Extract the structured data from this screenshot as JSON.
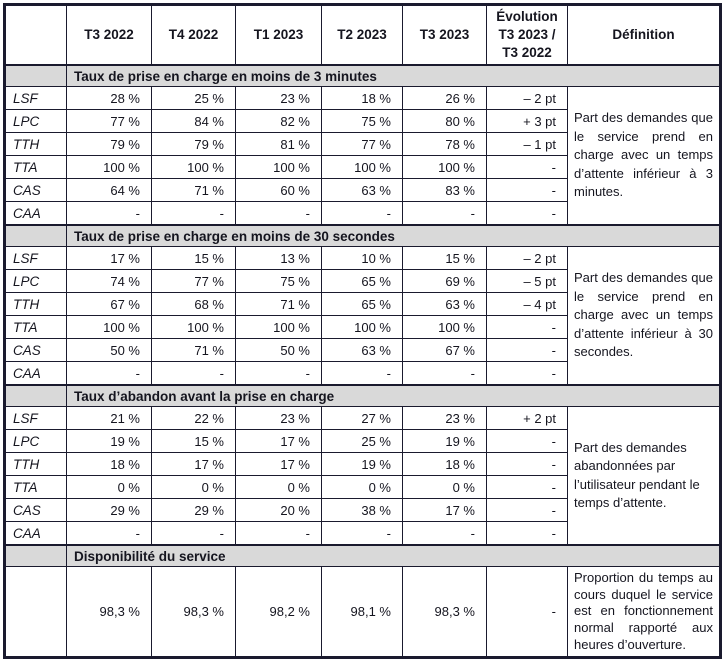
{
  "chart_data": {
    "type": "table",
    "columns": [
      "",
      "T3 2022",
      "T4 2022",
      "T1 2023",
      "T2 2023",
      "T3 2023",
      "Évolution T3 2023 / T3 2022",
      "Définition"
    ],
    "evolution_header_lines": [
      "Évolution",
      "T3 2023 /",
      "T3 2022"
    ],
    "sections": [
      {
        "title": "Taux de prise en charge en moins de 3 minutes",
        "rows": [
          {
            "label": "LSF",
            "values": [
              "28 %",
              "25 %",
              "23 %",
              "18 %",
              "26 %"
            ],
            "evolution": "– 2 pt"
          },
          {
            "label": "LPC",
            "values": [
              "77 %",
              "84 %",
              "82 %",
              "75 %",
              "80 %"
            ],
            "evolution": "+ 3 pt"
          },
          {
            "label": "TTH",
            "values": [
              "79 %",
              "79 %",
              "81 %",
              "77 %",
              "78 %"
            ],
            "evolution": "– 1 pt"
          },
          {
            "label": "TTA",
            "values": [
              "100 %",
              "100 %",
              "100 %",
              "100 %",
              "100 %"
            ],
            "evolution": "-"
          },
          {
            "label": "CAS",
            "values": [
              "64 %",
              "71 %",
              "60 %",
              "63 %",
              "83 %"
            ],
            "evolution": "-"
          },
          {
            "label": "CAA",
            "values": [
              "-",
              "-",
              "-",
              "-",
              "-"
            ],
            "evolution": "-"
          }
        ],
        "definition": "Part des demandes que le service prend en charge avec un temps d’attente inférieur à 3 minutes."
      },
      {
        "title": "Taux de prise en charge en moins de 30 secondes",
        "rows": [
          {
            "label": "LSF",
            "values": [
              "17 %",
              "15 %",
              "13 %",
              "10 %",
              "15 %"
            ],
            "evolution": "– 2 pt"
          },
          {
            "label": "LPC",
            "values": [
              "74 %",
              "77 %",
              "75 %",
              "65 %",
              "69 %"
            ],
            "evolution": "– 5 pt"
          },
          {
            "label": "TTH",
            "values": [
              "67 %",
              "68 %",
              "71 %",
              "65 %",
              "63 %"
            ],
            "evolution": "– 4 pt"
          },
          {
            "label": "TTA",
            "values": [
              "100 %",
              "100 %",
              "100 %",
              "100 %",
              "100 %"
            ],
            "evolution": "-"
          },
          {
            "label": "CAS",
            "values": [
              "50 %",
              "71 %",
              "50 %",
              "63 %",
              "67 %"
            ],
            "evolution": "-"
          },
          {
            "label": "CAA",
            "values": [
              "-",
              "-",
              "-",
              "-",
              "-"
            ],
            "evolution": "-"
          }
        ],
        "definition": "Part des demandes que le service prend en charge avec un temps d’attente inférieur à 30 secondes."
      },
      {
        "title": "Taux d’abandon avant la prise en charge",
        "rows": [
          {
            "label": "LSF",
            "values": [
              "21 %",
              "22 %",
              "23 %",
              "27 %",
              "23 %"
            ],
            "evolution": "+ 2 pt"
          },
          {
            "label": "LPC",
            "values": [
              "19 %",
              "15 %",
              "17 %",
              "25 %",
              "19 %"
            ],
            "evolution": "-"
          },
          {
            "label": "TTH",
            "values": [
              "18 %",
              "17 %",
              "17 %",
              "19 %",
              "18 %"
            ],
            "evolution": "-"
          },
          {
            "label": "TTA",
            "values": [
              "0 %",
              "0 %",
              "0 %",
              "0 %",
              "0 %"
            ],
            "evolution": "-"
          },
          {
            "label": "CAS",
            "values": [
              "29 %",
              "29 %",
              "20 %",
              "38 %",
              "17 %"
            ],
            "evolution": "-"
          },
          {
            "label": "CAA",
            "values": [
              "-",
              "-",
              "-",
              "-",
              "-"
            ],
            "evolution": "-"
          }
        ],
        "definition": "Part des demandes abandonnées par l’utilisateur pendant le temps d’attente."
      },
      {
        "title": "Disponibilité du service",
        "rows": [
          {
            "label": "",
            "values": [
              "98,3 %",
              "98,3 %",
              "98,2 %",
              "98,1 %",
              "98,3 %"
            ],
            "evolution": "-"
          }
        ],
        "definition": "Proportion du temps au cours duquel le service est en fonctionnement normal rapporté aux heures d’ouverture."
      }
    ]
  },
  "colors": {
    "section_header_bg": "#d9d9d9",
    "border": "#1a1a2e",
    "text": "#15151f",
    "background": "#ffffff"
  }
}
